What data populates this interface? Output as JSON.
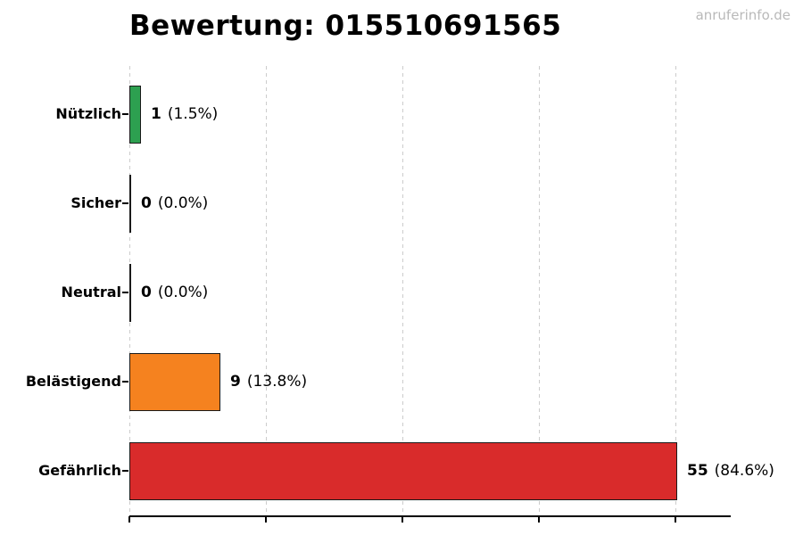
{
  "page": {
    "watermark": "anruferinfo.de"
  },
  "chart_data": {
    "type": "bar",
    "orientation": "horizontal",
    "title": "Bewertung: 015510691565",
    "categories": [
      "Nützlich",
      "Sicher",
      "Neutral",
      "Belästigend",
      "Gefährlich"
    ],
    "values": [
      1,
      0,
      0,
      9,
      55
    ],
    "value_labels": [
      {
        "count": "1",
        "suffix": "(1.5%)"
      },
      {
        "count": "0",
        "suffix": "(0.0%)"
      },
      {
        "count": "0",
        "suffix": "(0.0%)"
      },
      {
        "count": "9",
        "suffix": "(13.8%)"
      },
      {
        "count": "55",
        "suffix": "(84.6%)"
      }
    ],
    "bar_colors": [
      "#2da050",
      null,
      null,
      "#f5821f",
      "#d92b2b"
    ],
    "bar_edge_color": "#1a1a1a",
    "xlabel": "",
    "ylabel": "",
    "xlim": [
      0,
      60.6
    ],
    "x_tick_values": [
      0,
      13.75,
      27.5,
      41.25,
      55
    ],
    "x_tick_labels_visible": false,
    "grid": "vertical-dashed",
    "gridline_color": "#cccccc",
    "background": "#ffffff"
  }
}
